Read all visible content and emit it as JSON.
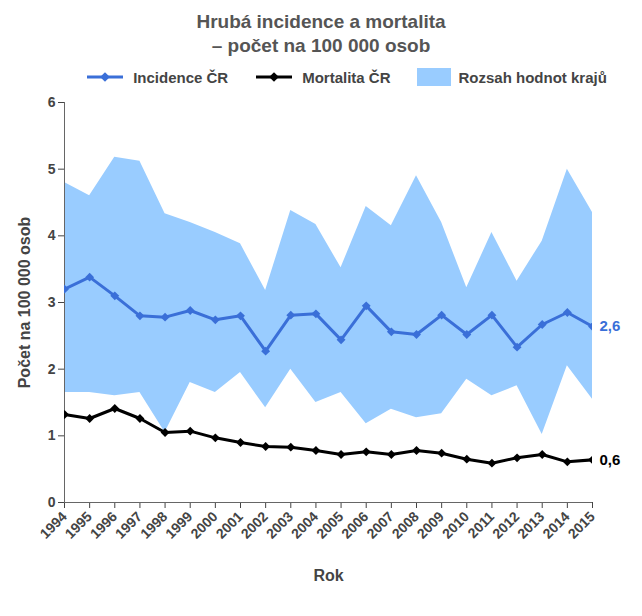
{
  "chart_data": {
    "type": "line",
    "title": "Hrubá incidence a mortalita",
    "subtitle": "– počet na 100 000 osob",
    "x_label": "Rok",
    "y_label": "Počet na 100 000 osob",
    "x": [
      1994,
      1995,
      1996,
      1997,
      1998,
      1999,
      2000,
      2001,
      2002,
      2003,
      2004,
      2005,
      2006,
      2007,
      2008,
      2009,
      2010,
      2011,
      2012,
      2013,
      2014,
      2015
    ],
    "xlim": [
      1994,
      2015
    ],
    "xticks": [
      1994,
      1995,
      1996,
      1997,
      1998,
      1999,
      2000,
      2001,
      2002,
      2003,
      2004,
      2005,
      2006,
      2007,
      2008,
      2009,
      2010,
      2011,
      2012,
      2013,
      2014,
      2015
    ],
    "ylim": [
      0,
      6
    ],
    "yticks": [
      0,
      1,
      2,
      3,
      4,
      5,
      6
    ],
    "grid": false,
    "legend": "top",
    "data_labels": true,
    "range": {
      "name": "Rozsah hodnot krajů",
      "color": "#99ccff",
      "low": [
        1.65,
        1.65,
        1.6,
        1.65,
        1.05,
        1.8,
        1.65,
        1.95,
        1.42,
        2.0,
        1.5,
        1.65,
        1.18,
        1.4,
        1.27,
        1.33,
        1.85,
        1.6,
        1.75,
        1.02,
        2.05,
        1.55
      ],
      "high": [
        4.8,
        4.6,
        5.18,
        5.12,
        4.33,
        4.2,
        4.05,
        3.88,
        3.18,
        4.38,
        4.17,
        3.52,
        4.44,
        4.15,
        4.9,
        4.2,
        3.22,
        4.05,
        3.32,
        3.92,
        5.0,
        4.35
      ]
    },
    "series": [
      {
        "name": "Incidence ČR",
        "color": "#3a6fd8",
        "marker": "diamond",
        "values": [
          3.2,
          3.38,
          3.1,
          2.8,
          2.78,
          2.88,
          2.74,
          2.8,
          2.27,
          2.81,
          2.83,
          2.44,
          2.95,
          2.56,
          2.52,
          2.81,
          2.52,
          2.81,
          2.33,
          2.67,
          2.85,
          2.64
        ],
        "value_labels": [
          null,
          null,
          null,
          null,
          null,
          null,
          null,
          null,
          null,
          null,
          null,
          null,
          null,
          null,
          null,
          null,
          null,
          null,
          null,
          null,
          null,
          "2,6"
        ]
      },
      {
        "name": "Mortalita ČR",
        "color": "#000000",
        "marker": "diamond",
        "values": [
          1.32,
          1.26,
          1.41,
          1.26,
          1.05,
          1.07,
          0.97,
          0.9,
          0.84,
          0.83,
          0.78,
          0.72,
          0.76,
          0.72,
          0.78,
          0.74,
          0.65,
          0.59,
          0.67,
          0.72,
          0.61,
          0.64
        ],
        "value_labels": [
          null,
          null,
          null,
          null,
          null,
          null,
          null,
          null,
          null,
          null,
          null,
          null,
          null,
          null,
          null,
          null,
          null,
          null,
          null,
          null,
          null,
          "0,6"
        ]
      }
    ]
  }
}
